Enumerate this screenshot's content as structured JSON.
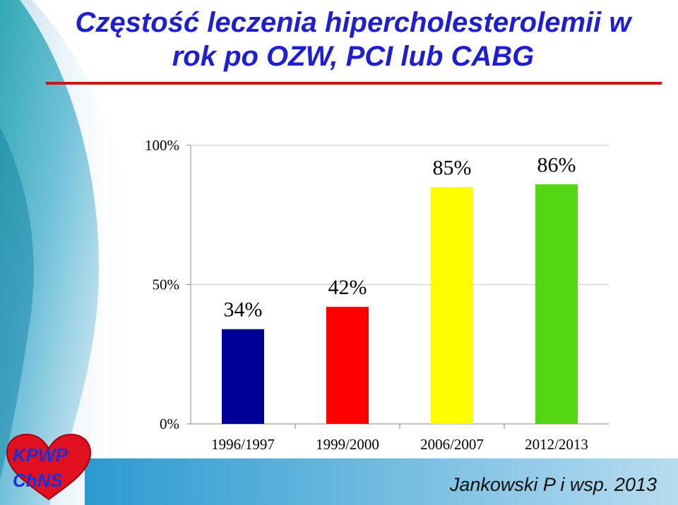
{
  "slide": {
    "title_line1": "Częstość leczenia hipercholesterolemii w",
    "title_line2": "rok po OZW, PCI lub CABG",
    "credit": "Jankowski P i wsp. 2013",
    "logo_line1": "KPWP",
    "logo_line2": "ChNS",
    "accent_color": "#d0121b",
    "title_color": "#1f1fd0"
  },
  "chart_data": {
    "type": "bar",
    "categories": [
      "1996/1997",
      "1999/2000",
      "2006/2007",
      "2012/2013"
    ],
    "values": [
      34,
      42,
      85,
      86
    ],
    "data_labels": [
      "34%",
      "42%",
      "85%",
      "86%"
    ],
    "colors": [
      "#000099",
      "#ff0000",
      "#ffff00",
      "#55d615"
    ],
    "ylim": [
      0,
      100
    ],
    "yticks": [
      0,
      50,
      100
    ],
    "ytick_labels": [
      "0%",
      "50%",
      "100%"
    ],
    "grid": true,
    "legend": "none"
  }
}
